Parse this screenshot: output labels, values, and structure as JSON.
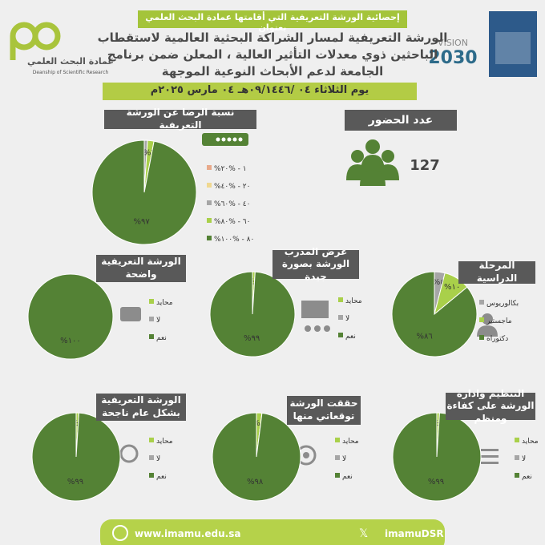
{
  "header": {
    "banner": "إحصائية الورشة التعريفية  التي أقامتها عمادة البحث العلمي بعنوان",
    "title": [
      "الورشة التعريفية لمسار الشراكة البحثية العالمية لاستقطاب",
      "الباحثين ذوي معدلات التأثير العالية ، المعلن ضمن برنامج",
      "الجامعة لدعم الأبحاث النوعية الموجهة"
    ],
    "date": "يوم الثلاثاء ٠٤ /٠٩/١٤٤٦هـ ٠٤ مارس ٢٠٢٥م",
    "deanship_ar": "عمادة البحث العلمي",
    "deanship_en": "Deanship of Scientific Research",
    "vision": "VISION",
    "vision_year": "2030"
  },
  "attendance": {
    "title": "عدد الحضور",
    "value": 127
  },
  "chart_data": [
    {
      "type": "pie",
      "title": "نسبة الرضا عن الورشة التعريفية",
      "categories": [
        "%١ - %٢٠",
        "%٢٠ - %٤٠",
        "%٤٠ - %٦٠",
        "%٦٠ - %٨٠",
        "%٨٠ - %١٠٠"
      ],
      "values": [
        0,
        0,
        1,
        2,
        97
      ],
      "value_labels": [
        null,
        null,
        "%١",
        "%٢",
        "%٩٧"
      ],
      "colors": [
        "#e8a98a",
        "#f0d890",
        "#a6a6a6",
        "#a9d04a",
        "#548235"
      ]
    },
    {
      "type": "pie",
      "title": "الورشة التعريفية واضحة",
      "categories": [
        "محايد",
        "لا",
        "نعم"
      ],
      "values": [
        0,
        0,
        100
      ],
      "value_labels": [
        null,
        null,
        "%١٠٠"
      ],
      "colors": [
        "#a9d04a",
        "#a6a6a6",
        "#548235"
      ]
    },
    {
      "type": "pie",
      "title": "عرض المدرب الورشة بصورة جيدة",
      "categories": [
        "محايد",
        "لا",
        "نعم"
      ],
      "values": [
        1,
        0,
        99
      ],
      "value_labels": [
        "%١",
        null,
        "%٩٩"
      ],
      "colors": [
        "#a9d04a",
        "#a6a6a6",
        "#548235"
      ]
    },
    {
      "type": "pie",
      "title": "المرحلة  الدراسية",
      "categories": [
        "بكالوريوس",
        "ماجستير",
        "دكتوراه"
      ],
      "values": [
        4,
        10,
        86
      ],
      "value_labels": [
        "%٤",
        "%١٠",
        "%٨٦"
      ],
      "colors": [
        "#a6a6a6",
        "#a9d04a",
        "#548235"
      ]
    },
    {
      "type": "pie",
      "title": "الورشة التعريفية بشكل عام ناجحة",
      "categories": [
        "محايد",
        "لا",
        "نعم"
      ],
      "values": [
        1,
        0,
        99
      ],
      "value_labels": [
        "%١",
        null,
        "%٩٩"
      ],
      "colors": [
        "#a9d04a",
        "#a6a6a6",
        "#548235"
      ]
    },
    {
      "type": "pie",
      "title": "حققت الورشة توقعاتي منها",
      "categories": [
        "محايد",
        "لا",
        "نعم"
      ],
      "values": [
        2,
        0,
        98
      ],
      "value_labels": [
        "%٢",
        null,
        "%٩٨"
      ],
      "colors": [
        "#a9d04a",
        "#a6a6a6",
        "#548235"
      ]
    },
    {
      "type": "pie",
      "title": "التنظيم وادارة الورشة على كفاءة ومنظم",
      "categories": [
        "محايد",
        "لا",
        "نعم"
      ],
      "values": [
        1,
        0,
        99
      ],
      "value_labels": [
        "%١",
        null,
        "%٩٩"
      ],
      "colors": [
        "#a9d04a",
        "#a6a6a6",
        "#548235"
      ]
    }
  ],
  "footer": {
    "website": "www.imamu.edu.sa",
    "handle": "imamuDSR"
  }
}
